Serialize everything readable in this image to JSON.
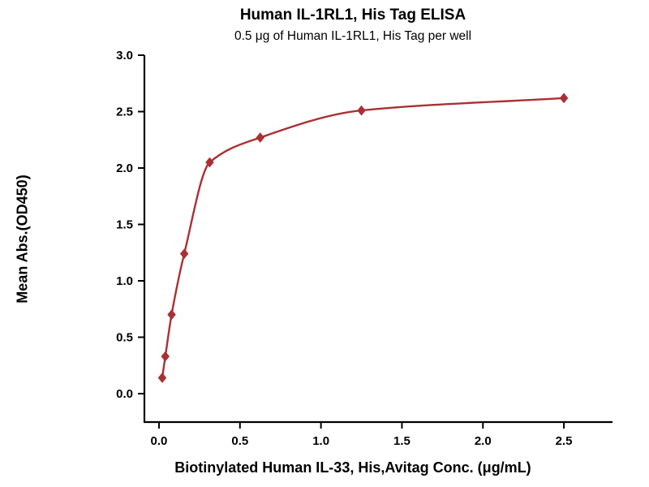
{
  "chart": {
    "title": "Human IL-1RL1, His Tag ELISA",
    "subtitle": "0.5 μg of Human IL-1RL1, His Tag per well",
    "ylabel": "Mean Abs.(OD450)",
    "xlabel": "Biotinylated Human IL-33, His,Avitag Conc. (μg/mL)"
  },
  "chart_data": {
    "type": "scatter",
    "title": "Human IL-1RL1, His Tag ELISA",
    "subtitle": "0.5 μg of Human IL-1RL1, His Tag per well",
    "xlabel": "Biotinylated Human IL-33, His,Avitag Conc. (μg/mL)",
    "ylabel": "Mean Abs.(OD450)",
    "series": [
      {
        "name": "Human IL-1RL1, His Tag",
        "x": [
          0.02,
          0.039,
          0.078,
          0.156,
          0.313,
          0.625,
          1.25,
          2.5
        ],
        "y": [
          0.14,
          0.33,
          0.7,
          1.24,
          2.05,
          2.27,
          2.51,
          2.62
        ]
      }
    ],
    "curve": "smooth fit through points",
    "x_ticks": [
      0.0,
      0.5,
      1.0,
      1.5,
      2.0,
      2.5
    ],
    "y_ticks": [
      0.0,
      0.5,
      1.0,
      1.5,
      2.0,
      2.5,
      3.0
    ],
    "xlim": [
      -0.09,
      2.8
    ],
    "ylim": [
      -0.252,
      3.0
    ],
    "grid": false,
    "legend": "none",
    "line_color": "#a93134",
    "marker_color": "#a93134",
    "marker": "diamond",
    "axis_color": "#000000",
    "background_color": "#ffffff"
  }
}
